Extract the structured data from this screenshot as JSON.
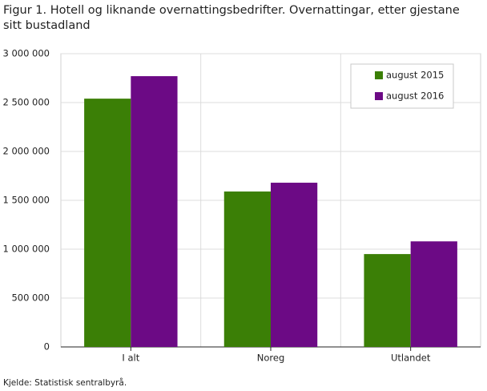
{
  "chart_data": {
    "type": "bar",
    "title": "Figur 1. Hotell og liknande overnattingsbedrifter. Overnattingar, etter gjestane sitt bustadland",
    "source": "Kjelde: Statistisk sentralbyrå.",
    "categories": [
      "I alt",
      "Noreg",
      "Utlandet"
    ],
    "series": [
      {
        "name": "august 2015",
        "color": "#3b7f06",
        "values": [
          2540000,
          1590000,
          950000
        ]
      },
      {
        "name": "august 2016",
        "color": "#6c0a85",
        "values": [
          2770000,
          1680000,
          1080000
        ]
      }
    ],
    "ylim": [
      0,
      3000000
    ],
    "yticks": [
      {
        "value": 0,
        "label": "0"
      },
      {
        "value": 500000,
        "label": "500 000"
      },
      {
        "value": 1000000,
        "label": "1 000 000"
      },
      {
        "value": 1500000,
        "label": "1 500 000"
      },
      {
        "value": 2000000,
        "label": "2 000 000"
      },
      {
        "value": 2500000,
        "label": "2 500 000"
      },
      {
        "value": 3000000,
        "label": "3 000 000"
      }
    ],
    "grid": true,
    "legend": "top-right"
  }
}
